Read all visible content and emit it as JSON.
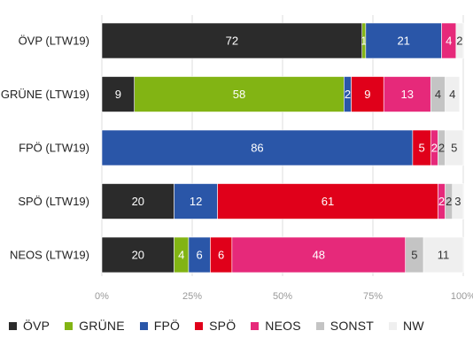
{
  "chart_data": {
    "type": "bar",
    "orientation": "horizontal",
    "stacked": true,
    "categories": [
      "ÖVP (LTW19)",
      "GRÜNE (LTW19)",
      "FPÖ (LTW19)",
      "SPÖ (LTW19)",
      "NEOS (LTW19)"
    ],
    "series": [
      {
        "name": "ÖVP",
        "color": "#2b2b2b",
        "label_color": "#ffffff",
        "values": [
          72,
          9,
          0,
          20,
          20
        ]
      },
      {
        "name": "GRÜNE",
        "color": "#82b414",
        "label_color": "#ffffff",
        "values": [
          1,
          58,
          0,
          0,
          4
        ]
      },
      {
        "name": "FPÖ",
        "color": "#2a56a8",
        "label_color": "#ffffff",
        "values": [
          21,
          2,
          86,
          12,
          6
        ]
      },
      {
        "name": "SPÖ",
        "color": "#e0001a",
        "label_color": "#ffffff",
        "values": [
          0,
          9,
          5,
          61,
          6
        ]
      },
      {
        "name": "NEOS",
        "color": "#e6297a",
        "label_color": "#ffffff",
        "values": [
          4,
          13,
          2,
          2,
          48
        ]
      },
      {
        "name": "SONST",
        "color": "#c4c4c4",
        "label_color": "#333333",
        "values": [
          0,
          4,
          2,
          2,
          5
        ]
      },
      {
        "name": "NW",
        "color": "#efefef",
        "label_color": "#333333",
        "values": [
          2,
          4,
          5,
          3,
          11
        ]
      }
    ],
    "xlim": [
      0,
      100
    ],
    "ticks": [
      "0%",
      "25%",
      "50%",
      "75%",
      "100%"
    ],
    "grid": true,
    "legend_position": "bottom"
  }
}
